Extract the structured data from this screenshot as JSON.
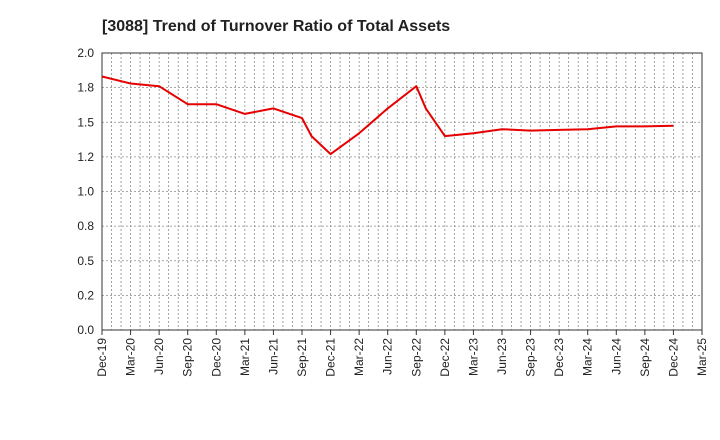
{
  "chart_data": {
    "type": "line",
    "title": "[3088]  Trend of Turnover Ratio of Total Assets",
    "xlabel": "",
    "ylabel": "",
    "ylim": [
      0,
      2
    ],
    "yticks": [
      "0.0",
      "0.2",
      "0.5",
      "0.8",
      "1.0",
      "1.2",
      "1.5",
      "1.8",
      "2.0"
    ],
    "ytick_values": [
      0,
      0.25,
      0.5,
      0.75,
      1.0,
      1.25,
      1.5,
      1.75,
      2.0
    ],
    "xticks": [
      "Dec-19",
      "Mar-20",
      "Jun-20",
      "Sep-20",
      "Dec-20",
      "Mar-21",
      "Jun-21",
      "Sep-21",
      "Dec-21",
      "Mar-22",
      "Jun-22",
      "Sep-22",
      "Dec-22",
      "Mar-23",
      "Jun-23",
      "Sep-23",
      "Dec-23",
      "Mar-24",
      "Jun-24",
      "Sep-24",
      "Dec-24",
      "Mar-25"
    ],
    "grid": true,
    "line_color": "#e60000",
    "series": [
      {
        "name": "",
        "x": [
          "Dec-19",
          "Mar-20",
          "Jun-20",
          "Sep-20",
          "Dec-20",
          "Mar-21",
          "Jun-21",
          "Sep-21",
          "Oct-21",
          "Dec-21",
          "Mar-22",
          "Jun-22",
          "Sep-22",
          "Oct-22",
          "Dec-22",
          "Mar-23",
          "Jun-23",
          "Sep-23",
          "Dec-23",
          "Mar-24",
          "Jun-24",
          "Sep-24",
          "Dec-24"
        ],
        "values": [
          1.83,
          1.78,
          1.76,
          1.63,
          1.63,
          1.56,
          1.6,
          1.53,
          1.4,
          1.27,
          1.42,
          1.6,
          1.76,
          1.6,
          1.4,
          1.42,
          1.45,
          1.44,
          1.445,
          1.45,
          1.47,
          1.47,
          1.475
        ]
      }
    ]
  }
}
